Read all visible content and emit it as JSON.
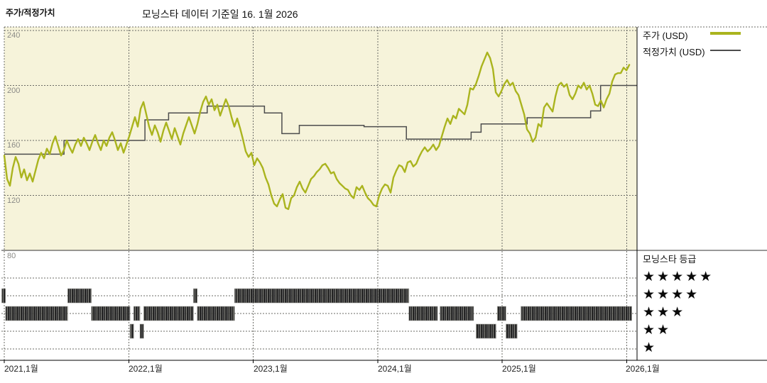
{
  "header": {
    "title_left": "주가/적정가치",
    "title_center": "모닝스타 데이터 기준일 16. 1월 2026"
  },
  "legend": {
    "price_label": "주가 (USD)",
    "fair_value_label": "적정가치 (USD)"
  },
  "rating_legend": {
    "title": "모닝스타 등급",
    "rows": [
      "★★★★★",
      "★★★★",
      "★★★",
      "★★",
      "★"
    ]
  },
  "colors": {
    "price_line": "#aab41e",
    "fair_value_line": "#4d4d4d",
    "plot_background": "#f6f3da",
    "grid": "#6b6b66",
    "axis": "#000000",
    "rating_bar": "#2a2a2a"
  },
  "chart_data": {
    "type": "line",
    "title": "주가/적정가치",
    "subtitle": "모닝스타 데이터 기준일 16. 1월 2026",
    "grid": true,
    "legend_position": "right",
    "x_axis": {
      "tick_labels": [
        "2021,1월",
        "2022,1월",
        "2023,1월",
        "2024,1월",
        "2025,1월",
        "2026,1월"
      ],
      "tick_years": [
        2021,
        2022,
        2023,
        2024,
        2025,
        2026
      ],
      "range_years": [
        2021.0,
        2026.08
      ]
    },
    "y_axis": {
      "tick_labels": [
        "240",
        "200",
        "160",
        "120",
        "80"
      ],
      "ticks": [
        240,
        200,
        160,
        120,
        80
      ],
      "range": [
        80,
        242
      ],
      "unit": "USD"
    },
    "series": [
      {
        "name": "주가 (USD)",
        "type": "line",
        "color": "#aab41e",
        "start_year": 2021.0,
        "step_years": 0.02282,
        "values": [
          149,
          132,
          127,
          140,
          148,
          143,
          133,
          139,
          131,
          136,
          130,
          138,
          146,
          151,
          147,
          154,
          150,
          158,
          163,
          156,
          149,
          153,
          160,
          155,
          151,
          157,
          161,
          156,
          162,
          158,
          153,
          159,
          164,
          158,
          153,
          160,
          156,
          162,
          166,
          160,
          153,
          158,
          151,
          157,
          163,
          170,
          177,
          170,
          183,
          188,
          179,
          170,
          164,
          171,
          166,
          159,
          167,
          173,
          167,
          161,
          169,
          163,
          157,
          165,
          171,
          177,
          171,
          165,
          172,
          181,
          188,
          192,
          186,
          190,
          182,
          186,
          178,
          184,
          190,
          185,
          177,
          170,
          176,
          169,
          161,
          152,
          148,
          151,
          142,
          147,
          144,
          140,
          133,
          128,
          120,
          114,
          112,
          117,
          121,
          111,
          110,
          118,
          120,
          126,
          130,
          125,
          122,
          127,
          132,
          134,
          137,
          139,
          142,
          143,
          140,
          136,
          137,
          132,
          129,
          127,
          125,
          124,
          120,
          118,
          126,
          124,
          127,
          122,
          118,
          116,
          113,
          112,
          120,
          125,
          128,
          127,
          122,
          133,
          138,
          142,
          141,
          137,
          144,
          145,
          141,
          143,
          148,
          152,
          155,
          152,
          154,
          157,
          153,
          156,
          163,
          170,
          176,
          172,
          178,
          176,
          183,
          181,
          179,
          186,
          198,
          197,
          201,
          207,
          214,
          219,
          224,
          220,
          212,
          195,
          192,
          196,
          201,
          204,
          200,
          202,
          196,
          193,
          186,
          179,
          168,
          165,
          159,
          162,
          172,
          170,
          184,
          187,
          184,
          181,
          192,
          200,
          202,
          199,
          201,
          193,
          190,
          194,
          200,
          198,
          202,
          197,
          200,
          194,
          186,
          185,
          189,
          184,
          190,
          194,
          203,
          208,
          209,
          209,
          213,
          211,
          215
        ]
      },
      {
        "name": "적정가치 (USD)",
        "type": "step",
        "color": "#4d4d4d",
        "points": [
          [
            2021.0,
            150
          ],
          [
            2021.48,
            160
          ],
          [
            2022.13,
            175
          ],
          [
            2022.32,
            180
          ],
          [
            2022.63,
            185
          ],
          [
            2023.09,
            180
          ],
          [
            2023.23,
            165
          ],
          [
            2023.37,
            171
          ],
          [
            2023.89,
            170
          ],
          [
            2024.23,
            161
          ],
          [
            2024.75,
            166
          ],
          [
            2024.83,
            172
          ],
          [
            2025.2,
            176.5
          ],
          [
            2025.71,
            181.5
          ],
          [
            2025.79,
            200
          ]
        ],
        "end_year": 2026.08
      }
    ],
    "ratings": {
      "title": "모닝스타 등급",
      "levels": [
        5,
        4,
        3,
        2,
        1
      ],
      "segments": [
        {
          "stars": 4,
          "start": 2020.98,
          "end": 2021.01
        },
        {
          "stars": 3,
          "start": 2021.01,
          "end": 2021.51
        },
        {
          "stars": 4,
          "start": 2021.51,
          "end": 2021.7
        },
        {
          "stars": 3,
          "start": 2021.7,
          "end": 2022.01
        },
        {
          "stars": 2,
          "start": 2022.01,
          "end": 2022.04
        },
        {
          "stars": 3,
          "start": 2022.04,
          "end": 2022.09
        },
        {
          "stars": 2,
          "start": 2022.09,
          "end": 2022.12
        },
        {
          "stars": 3,
          "start": 2022.12,
          "end": 2022.52
        },
        {
          "stars": 4,
          "start": 2022.52,
          "end": 2022.55
        },
        {
          "stars": 3,
          "start": 2022.55,
          "end": 2022.85
        },
        {
          "stars": 4,
          "start": 2022.85,
          "end": 2024.25
        },
        {
          "stars": 3,
          "start": 2024.25,
          "end": 2024.48
        },
        {
          "stars": 3,
          "start": 2024.5,
          "end": 2024.77
        },
        {
          "stars": 2,
          "start": 2024.79,
          "end": 2024.95
        },
        {
          "stars": 3,
          "start": 2024.96,
          "end": 2025.03
        },
        {
          "stars": 2,
          "start": 2025.03,
          "end": 2025.12
        },
        {
          "stars": 3,
          "start": 2025.15,
          "end": 2026.04
        }
      ]
    }
  }
}
